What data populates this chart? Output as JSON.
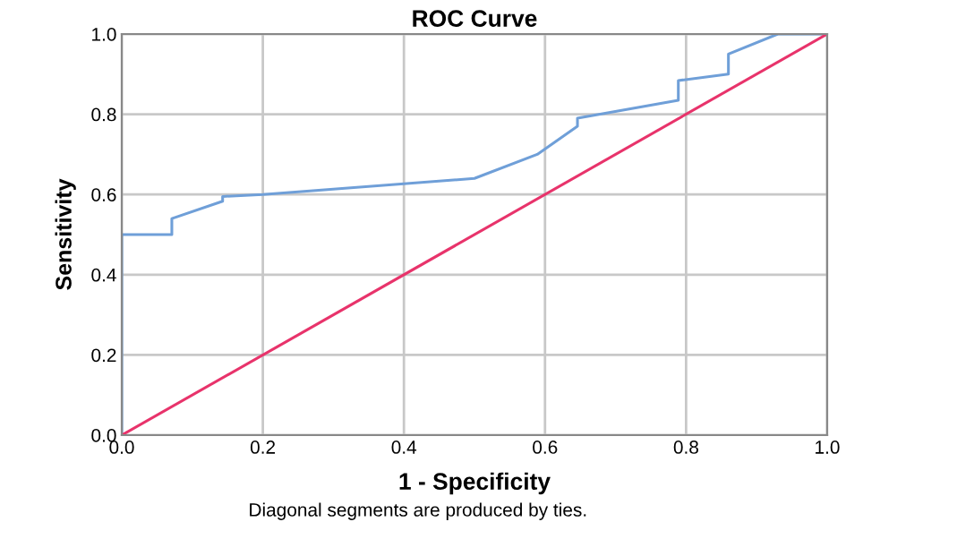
{
  "chart_data": {
    "type": "line",
    "title": "ROC Curve",
    "xlabel": "1 - Specificity",
    "ylabel": "Sensitivity",
    "annotations": [
      "Diagonal segments are produced by ties."
    ],
    "series": [
      {
        "color": "#6f9fd8",
        "x": [
          0,
          0,
          0.071,
          0.071,
          0.143,
          0.143,
          0.2,
          0.5,
          0.589,
          0.646,
          0.646,
          0.789,
          0.789,
          0.86,
          0.86,
          0.93,
          1.0
        ],
        "values": [
          0,
          0.5,
          0.5,
          0.54,
          0.583,
          0.595,
          0.6,
          0.64,
          0.7,
          0.77,
          0.79,
          0.835,
          0.884,
          0.9,
          0.95,
          1.0,
          1.0
        ]
      },
      {
        "color": "#e8336b",
        "x": [
          0,
          1
        ],
        "values": [
          0,
          1
        ]
      }
    ],
    "xlim": [
      0,
      1
    ],
    "ylim": [
      0,
      1
    ],
    "xticks": [
      {
        "value": 0,
        "label": "0.0"
      },
      {
        "value": 0.2,
        "label": "0.2"
      },
      {
        "value": 0.4,
        "label": "0.4"
      },
      {
        "value": 0.6,
        "label": "0.6"
      },
      {
        "value": 0.8,
        "label": "0.8"
      },
      {
        "value": 1,
        "label": "1.0"
      }
    ],
    "yticks": [
      {
        "value": 0,
        "label": "0.0"
      },
      {
        "value": 0.2,
        "label": "0.2"
      },
      {
        "value": 0.4,
        "label": "0.4"
      },
      {
        "value": 0.6,
        "label": "0.6"
      },
      {
        "value": 0.8,
        "label": "0.8"
      },
      {
        "value": 1,
        "label": "1.0"
      }
    ],
    "grid": true,
    "line_style": "solid"
  }
}
